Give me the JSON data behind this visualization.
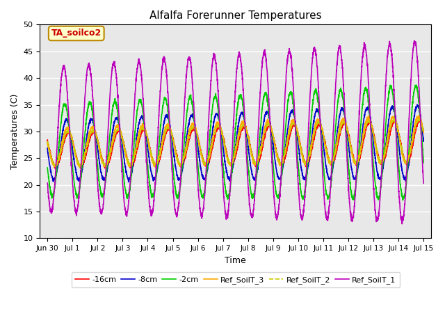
{
  "title": "Alfalfa Forerunner Temperatures",
  "xlabel": "Time",
  "ylabel": "Temperatures (C)",
  "xlim_start": -0.3,
  "xlim_end": 15.3,
  "ylim": [
    10,
    50
  ],
  "yticks": [
    10,
    15,
    20,
    25,
    30,
    35,
    40,
    45,
    50
  ],
  "xtick_labels": [
    "Jun 30",
    "Jul 1",
    "Jul 2",
    "Jul 3",
    "Jul 4",
    "Jul 5",
    "Jul 6",
    "Jul 7",
    "Jul 8",
    "Jul 9",
    "Jul 10",
    "Jul 11",
    "Jul 12",
    "Jul 13",
    "Jul 14",
    "Jul 15"
  ],
  "xtick_positions": [
    0,
    1,
    2,
    3,
    4,
    5,
    6,
    7,
    8,
    9,
    10,
    11,
    12,
    13,
    14,
    15
  ],
  "annotation_text": "TA_soilco2",
  "background_color": "#e8e8e8",
  "series": [
    {
      "label": "-16cm",
      "color": "#ff0000",
      "lw": 1.2
    },
    {
      "label": "-8cm",
      "color": "#0000cc",
      "lw": 1.2
    },
    {
      "label": "-2cm",
      "color": "#00cc00",
      "lw": 1.2
    },
    {
      "label": "Ref_SoilT_3",
      "color": "#ffaa00",
      "lw": 1.2
    },
    {
      "label": "Ref_SoilT_2",
      "color": "#cccc00",
      "lw": 1.2
    },
    {
      "label": "Ref_SoilT_1",
      "color": "#bb00bb",
      "lw": 1.2
    }
  ],
  "fig_bg": "#ffffff",
  "grid_color": "#ffffff",
  "grid_lw": 1.0
}
